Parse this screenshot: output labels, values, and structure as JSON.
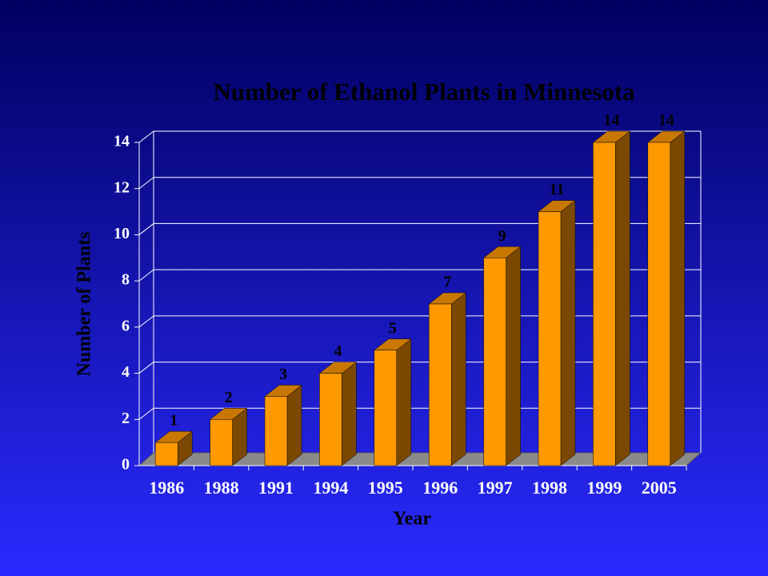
{
  "chart_data": {
    "type": "bar",
    "title": "Number of Ethanol Plants in Minnesota",
    "x_label": "Year",
    "y_label": "Number of Plants",
    "categories": [
      "1986",
      "1988",
      "1991",
      "1994",
      "1995",
      "1996",
      "1997",
      "1998",
      "1999",
      "2005"
    ],
    "values": [
      1,
      2,
      3,
      4,
      5,
      7,
      9,
      11,
      14,
      14
    ],
    "color": "#ff9900",
    "ylim": [
      0,
      14
    ],
    "yticks": [
      0,
      2,
      4,
      6,
      8,
      10,
      12,
      14
    ],
    "grid": true
  }
}
